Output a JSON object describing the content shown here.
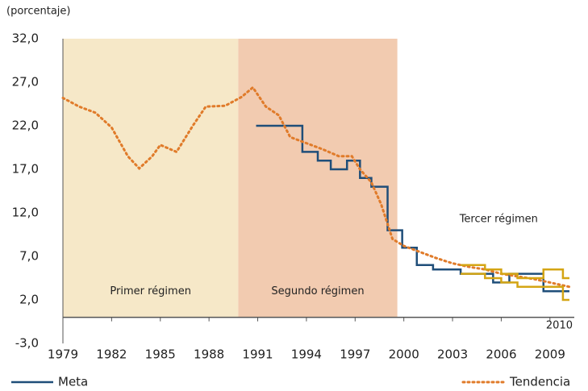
{
  "chart_data": {
    "type": "line",
    "y_label": "(porcentaje)",
    "xlim": [
      1979,
      2010.5
    ],
    "ylim": [
      -3,
      32
    ],
    "xticks": [
      1979,
      1982,
      1985,
      1988,
      1991,
      1994,
      1997,
      2000,
      2003,
      2006,
      2009
    ],
    "yticks": [
      {
        "value": 32,
        "label": "32,0"
      },
      {
        "value": 27,
        "label": "27,0"
      },
      {
        "value": 22,
        "label": "22,0"
      },
      {
        "value": 17,
        "label": "17,0"
      },
      {
        "value": 12,
        "label": "12,0"
      },
      {
        "value": 7,
        "label": "7,0"
      },
      {
        "value": 2,
        "label": "2,0"
      },
      {
        "value": -3,
        "label": "-3,0"
      }
    ],
    "end_label": "2010",
    "regions": [
      {
        "label": "Primer régimen",
        "start": 1979,
        "end": 1989.8,
        "color": "#f6e8c8"
      },
      {
        "label": "Segundo régimen",
        "start": 1989.8,
        "end": 1999.6,
        "color": "#f2cbb0"
      },
      {
        "label": "Tercer régimen",
        "start": 1999.6,
        "end": 2010.5,
        "color": null
      }
    ],
    "series": [
      {
        "name": "Meta",
        "color": "#1f4e79",
        "style": "solid",
        "x": [
          1990.9,
          1993.75,
          1993.75,
          1994.7,
          1994.7,
          1995.5,
          1995.5,
          1996.5,
          1996.5,
          1997.3,
          1997.3,
          1998.0,
          1998.0,
          1999.0,
          1999.0,
          1999.9,
          1999.9,
          2000.8,
          2000.8,
          2001.8,
          2001.8,
          2003.5,
          2003.5,
          2005.5,
          2005.5,
          2006.5,
          2006.5,
          2008.6,
          2008.6,
          2009.7,
          2009.7,
          2010.2
        ],
        "values": [
          22,
          22,
          19,
          19,
          18,
          18,
          17,
          17,
          18,
          18,
          16,
          16,
          15,
          15,
          10,
          10,
          8,
          8,
          6,
          6,
          5.5,
          5.5,
          5,
          5,
          4,
          4,
          5,
          5,
          3,
          3,
          3,
          3
        ]
      },
      {
        "name": "Tendencia",
        "color": "#e07b2a",
        "style": "dotted",
        "x": [
          1979,
          1980,
          1981,
          1982,
          1983,
          1983.7,
          1984.5,
          1985,
          1986,
          1987,
          1987.8,
          1989,
          1990,
          1990.7,
          1991.5,
          1992.3,
          1993,
          1994,
          1995,
          1996,
          1996.8,
          1997.3,
          1998,
          1998.6,
          1999.3,
          2000,
          2001,
          2002,
          2003,
          2004,
          2005,
          2006,
          2007,
          2008,
          2009,
          2010.2
        ],
        "values": [
          25.2,
          24.2,
          23.5,
          21.8,
          18.5,
          17.1,
          18.5,
          19.8,
          19,
          22,
          24.2,
          24.3,
          25.3,
          26.4,
          24.2,
          23.2,
          20.7,
          20,
          19.3,
          18.5,
          18.5,
          17,
          15.5,
          13,
          9,
          8.2,
          7.5,
          6.8,
          6.2,
          5.8,
          5.5,
          5,
          4.7,
          4.4,
          4,
          3.5
        ]
      },
      {
        "color": "#d4a514",
        "style": "solid",
        "x": [
          2003.5,
          2005,
          2005,
          2006,
          2006,
          2007,
          2007,
          2008.6,
          2008.6,
          2009.8,
          2009.8,
          2010.2
        ],
        "values": [
          6,
          6,
          5.5,
          5.5,
          5,
          5,
          4.5,
          4.5,
          5.5,
          5.5,
          4.5,
          4.5
        ]
      },
      {
        "color": "#d4a514",
        "style": "solid",
        "x": [
          2003.5,
          2005,
          2005,
          2006,
          2006,
          2007,
          2007,
          2008.6,
          2008.6,
          2009.8,
          2009.8,
          2010.2
        ],
        "values": [
          5,
          5,
          4.5,
          4.5,
          4,
          4,
          3.5,
          3.5,
          3.5,
          3.5,
          2,
          2
        ]
      }
    ]
  }
}
